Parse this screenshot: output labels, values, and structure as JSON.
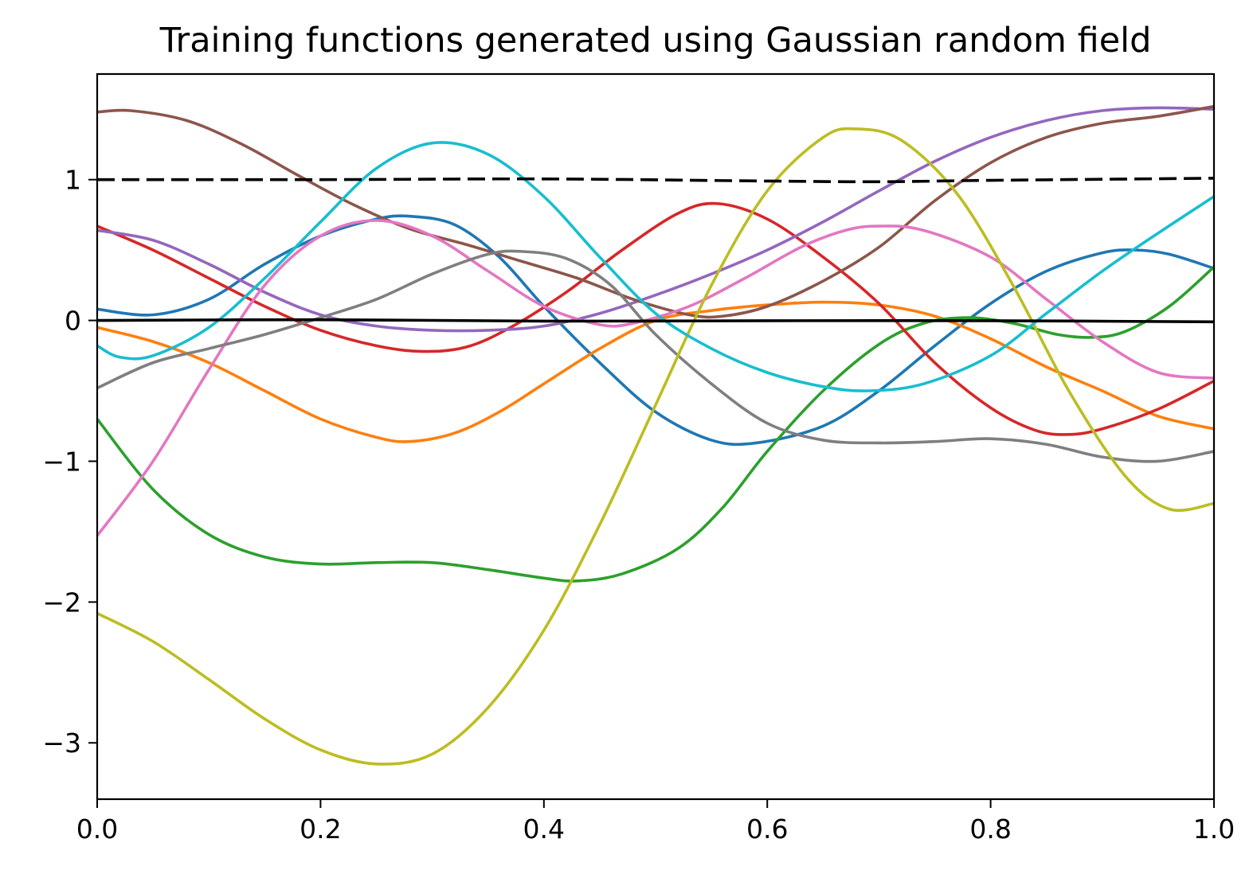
{
  "chart_data": {
    "type": "line",
    "title": "Training functions generated using Gaussian random field",
    "xlabel": "",
    "ylabel": "",
    "xlim": [
      0.0,
      1.0
    ],
    "ylim": [
      -3.4,
      1.75
    ],
    "x_ticks": [
      0.0,
      0.2,
      0.4,
      0.6,
      0.8,
      1.0
    ],
    "x_tick_labels": [
      "0.0",
      "0.2",
      "0.4",
      "0.6",
      "0.8",
      "1.0"
    ],
    "y_ticks": [
      -3,
      -2,
      -1,
      0,
      1
    ],
    "y_tick_labels": [
      "−3",
      "−2",
      "−1",
      "0",
      "1"
    ],
    "grid": false,
    "legend": "none",
    "series": [
      {
        "color": "#1f77b4",
        "style": "solid",
        "points": [
          [
            0.0,
            0.08
          ],
          [
            0.05,
            0.04
          ],
          [
            0.1,
            0.15
          ],
          [
            0.15,
            0.4
          ],
          [
            0.2,
            0.6
          ],
          [
            0.25,
            0.72
          ],
          [
            0.28,
            0.74
          ],
          [
            0.32,
            0.68
          ],
          [
            0.36,
            0.45
          ],
          [
            0.4,
            0.1
          ],
          [
            0.45,
            -0.3
          ],
          [
            0.5,
            -0.65
          ],
          [
            0.55,
            -0.85
          ],
          [
            0.59,
            -0.87
          ],
          [
            0.65,
            -0.75
          ],
          [
            0.7,
            -0.5
          ],
          [
            0.75,
            -0.18
          ],
          [
            0.8,
            0.12
          ],
          [
            0.85,
            0.35
          ],
          [
            0.9,
            0.48
          ],
          [
            0.93,
            0.5
          ],
          [
            0.96,
            0.47
          ],
          [
            1.0,
            0.37
          ]
        ]
      },
      {
        "color": "#ff7f0e",
        "style": "solid",
        "points": [
          [
            0.0,
            -0.05
          ],
          [
            0.05,
            -0.15
          ],
          [
            0.1,
            -0.3
          ],
          [
            0.15,
            -0.5
          ],
          [
            0.2,
            -0.7
          ],
          [
            0.25,
            -0.83
          ],
          [
            0.28,
            -0.86
          ],
          [
            0.32,
            -0.8
          ],
          [
            0.36,
            -0.65
          ],
          [
            0.4,
            -0.45
          ],
          [
            0.45,
            -0.2
          ],
          [
            0.5,
            0.0
          ],
          [
            0.55,
            0.07
          ],
          [
            0.6,
            0.11
          ],
          [
            0.65,
            0.13
          ],
          [
            0.7,
            0.11
          ],
          [
            0.75,
            0.03
          ],
          [
            0.8,
            -0.13
          ],
          [
            0.85,
            -0.33
          ],
          [
            0.9,
            -0.5
          ],
          [
            0.95,
            -0.68
          ],
          [
            1.0,
            -0.77
          ]
        ]
      },
      {
        "color": "#2ca02c",
        "style": "solid",
        "points": [
          [
            0.0,
            -0.7
          ],
          [
            0.05,
            -1.2
          ],
          [
            0.1,
            -1.52
          ],
          [
            0.15,
            -1.68
          ],
          [
            0.2,
            -1.73
          ],
          [
            0.25,
            -1.72
          ],
          [
            0.3,
            -1.72
          ],
          [
            0.35,
            -1.77
          ],
          [
            0.4,
            -1.83
          ],
          [
            0.43,
            -1.85
          ],
          [
            0.47,
            -1.8
          ],
          [
            0.52,
            -1.62
          ],
          [
            0.56,
            -1.33
          ],
          [
            0.6,
            -0.93
          ],
          [
            0.65,
            -0.5
          ],
          [
            0.7,
            -0.17
          ],
          [
            0.74,
            -0.02
          ],
          [
            0.78,
            0.02
          ],
          [
            0.82,
            -0.02
          ],
          [
            0.86,
            -0.1
          ],
          [
            0.89,
            -0.12
          ],
          [
            0.92,
            -0.08
          ],
          [
            0.96,
            0.1
          ],
          [
            1.0,
            0.38
          ]
        ]
      },
      {
        "color": "#d62728",
        "style": "solid",
        "points": [
          [
            0.0,
            0.67
          ],
          [
            0.05,
            0.5
          ],
          [
            0.1,
            0.3
          ],
          [
            0.15,
            0.1
          ],
          [
            0.2,
            -0.07
          ],
          [
            0.25,
            -0.18
          ],
          [
            0.29,
            -0.22
          ],
          [
            0.33,
            -0.19
          ],
          [
            0.37,
            -0.05
          ],
          [
            0.42,
            0.2
          ],
          [
            0.47,
            0.5
          ],
          [
            0.52,
            0.76
          ],
          [
            0.555,
            0.83
          ],
          [
            0.6,
            0.72
          ],
          [
            0.65,
            0.45
          ],
          [
            0.7,
            0.12
          ],
          [
            0.75,
            -0.3
          ],
          [
            0.8,
            -0.62
          ],
          [
            0.84,
            -0.78
          ],
          [
            0.87,
            -0.81
          ],
          [
            0.9,
            -0.77
          ],
          [
            0.95,
            -0.63
          ],
          [
            1.0,
            -0.43
          ]
        ]
      },
      {
        "color": "#9467bd",
        "style": "solid",
        "points": [
          [
            0.0,
            0.64
          ],
          [
            0.05,
            0.57
          ],
          [
            0.1,
            0.4
          ],
          [
            0.15,
            0.2
          ],
          [
            0.2,
            0.04
          ],
          [
            0.25,
            -0.04
          ],
          [
            0.3,
            -0.07
          ],
          [
            0.35,
            -0.07
          ],
          [
            0.4,
            -0.04
          ],
          [
            0.45,
            0.05
          ],
          [
            0.5,
            0.18
          ],
          [
            0.55,
            0.33
          ],
          [
            0.6,
            0.5
          ],
          [
            0.65,
            0.7
          ],
          [
            0.7,
            0.92
          ],
          [
            0.75,
            1.13
          ],
          [
            0.8,
            1.3
          ],
          [
            0.85,
            1.42
          ],
          [
            0.9,
            1.49
          ],
          [
            0.95,
            1.51
          ],
          [
            1.0,
            1.5
          ]
        ]
      },
      {
        "color": "#8c564b",
        "style": "solid",
        "points": [
          [
            0.0,
            1.48
          ],
          [
            0.03,
            1.49
          ],
          [
            0.08,
            1.42
          ],
          [
            0.13,
            1.25
          ],
          [
            0.18,
            1.03
          ],
          [
            0.23,
            0.82
          ],
          [
            0.28,
            0.65
          ],
          [
            0.33,
            0.54
          ],
          [
            0.38,
            0.42
          ],
          [
            0.43,
            0.3
          ],
          [
            0.48,
            0.15
          ],
          [
            0.53,
            0.04
          ],
          [
            0.56,
            0.03
          ],
          [
            0.6,
            0.1
          ],
          [
            0.65,
            0.28
          ],
          [
            0.7,
            0.52
          ],
          [
            0.75,
            0.85
          ],
          [
            0.8,
            1.12
          ],
          [
            0.85,
            1.3
          ],
          [
            0.9,
            1.4
          ],
          [
            0.95,
            1.45
          ],
          [
            1.0,
            1.52
          ]
        ]
      },
      {
        "color": "#e377c2",
        "style": "solid",
        "points": [
          [
            0.0,
            -1.53
          ],
          [
            0.05,
            -1.0
          ],
          [
            0.1,
            -0.35
          ],
          [
            0.15,
            0.25
          ],
          [
            0.2,
            0.6
          ],
          [
            0.25,
            0.71
          ],
          [
            0.3,
            0.6
          ],
          [
            0.35,
            0.35
          ],
          [
            0.4,
            0.1
          ],
          [
            0.45,
            -0.03
          ],
          [
            0.48,
            -0.02
          ],
          [
            0.53,
            0.1
          ],
          [
            0.58,
            0.3
          ],
          [
            0.63,
            0.52
          ],
          [
            0.67,
            0.64
          ],
          [
            0.7,
            0.67
          ],
          [
            0.74,
            0.64
          ],
          [
            0.8,
            0.45
          ],
          [
            0.85,
            0.15
          ],
          [
            0.9,
            -0.15
          ],
          [
            0.95,
            -0.37
          ],
          [
            1.0,
            -0.41
          ]
        ]
      },
      {
        "color": "#7f7f7f",
        "style": "solid",
        "points": [
          [
            0.0,
            -0.48
          ],
          [
            0.05,
            -0.3
          ],
          [
            0.1,
            -0.2
          ],
          [
            0.15,
            -0.1
          ],
          [
            0.2,
            0.02
          ],
          [
            0.25,
            0.15
          ],
          [
            0.3,
            0.33
          ],
          [
            0.35,
            0.47
          ],
          [
            0.38,
            0.49
          ],
          [
            0.42,
            0.44
          ],
          [
            0.46,
            0.25
          ],
          [
            0.5,
            -0.1
          ],
          [
            0.55,
            -0.45
          ],
          [
            0.6,
            -0.73
          ],
          [
            0.65,
            -0.85
          ],
          [
            0.7,
            -0.87
          ],
          [
            0.75,
            -0.86
          ],
          [
            0.8,
            -0.84
          ],
          [
            0.85,
            -0.88
          ],
          [
            0.9,
            -0.97
          ],
          [
            0.95,
            -1.0
          ],
          [
            1.0,
            -0.93
          ]
        ]
      },
      {
        "color": "#bcbd22",
        "style": "solid",
        "points": [
          [
            0.0,
            -2.08
          ],
          [
            0.05,
            -2.28
          ],
          [
            0.1,
            -2.55
          ],
          [
            0.15,
            -2.83
          ],
          [
            0.2,
            -3.05
          ],
          [
            0.25,
            -3.15
          ],
          [
            0.3,
            -3.08
          ],
          [
            0.35,
            -2.75
          ],
          [
            0.4,
            -2.2
          ],
          [
            0.45,
            -1.45
          ],
          [
            0.5,
            -0.6
          ],
          [
            0.55,
            0.25
          ],
          [
            0.6,
            0.92
          ],
          [
            0.65,
            1.3
          ],
          [
            0.68,
            1.36
          ],
          [
            0.72,
            1.28
          ],
          [
            0.77,
            0.9
          ],
          [
            0.82,
            0.25
          ],
          [
            0.87,
            -0.5
          ],
          [
            0.92,
            -1.1
          ],
          [
            0.96,
            -1.34
          ],
          [
            1.0,
            -1.3
          ]
        ]
      },
      {
        "color": "#17becf",
        "style": "solid",
        "points": [
          [
            0.0,
            -0.18
          ],
          [
            0.02,
            -0.26
          ],
          [
            0.05,
            -0.25
          ],
          [
            0.1,
            -0.05
          ],
          [
            0.15,
            0.3
          ],
          [
            0.2,
            0.7
          ],
          [
            0.25,
            1.08
          ],
          [
            0.3,
            1.26
          ],
          [
            0.35,
            1.18
          ],
          [
            0.4,
            0.88
          ],
          [
            0.45,
            0.45
          ],
          [
            0.5,
            0.05
          ],
          [
            0.55,
            -0.2
          ],
          [
            0.6,
            -0.37
          ],
          [
            0.65,
            -0.47
          ],
          [
            0.69,
            -0.5
          ],
          [
            0.74,
            -0.45
          ],
          [
            0.8,
            -0.25
          ],
          [
            0.85,
            0.05
          ],
          [
            0.9,
            0.35
          ],
          [
            0.95,
            0.62
          ],
          [
            1.0,
            0.88
          ]
        ]
      },
      {
        "color": "#000000",
        "style": "solid",
        "points": [
          [
            0.0,
            0.0
          ],
          [
            0.2,
            0.005
          ],
          [
            0.4,
            -0.005
          ],
          [
            0.6,
            -0.002
          ],
          [
            0.8,
            -0.002
          ],
          [
            1.0,
            -0.01
          ]
        ]
      },
      {
        "color": "#000000",
        "style": "dashed",
        "points": [
          [
            0.0,
            1.0
          ],
          [
            0.2,
            1.0
          ],
          [
            0.4,
            1.005
          ],
          [
            0.6,
            0.99
          ],
          [
            0.7,
            0.985
          ],
          [
            0.8,
            0.995
          ],
          [
            1.0,
            1.01
          ]
        ]
      }
    ]
  }
}
